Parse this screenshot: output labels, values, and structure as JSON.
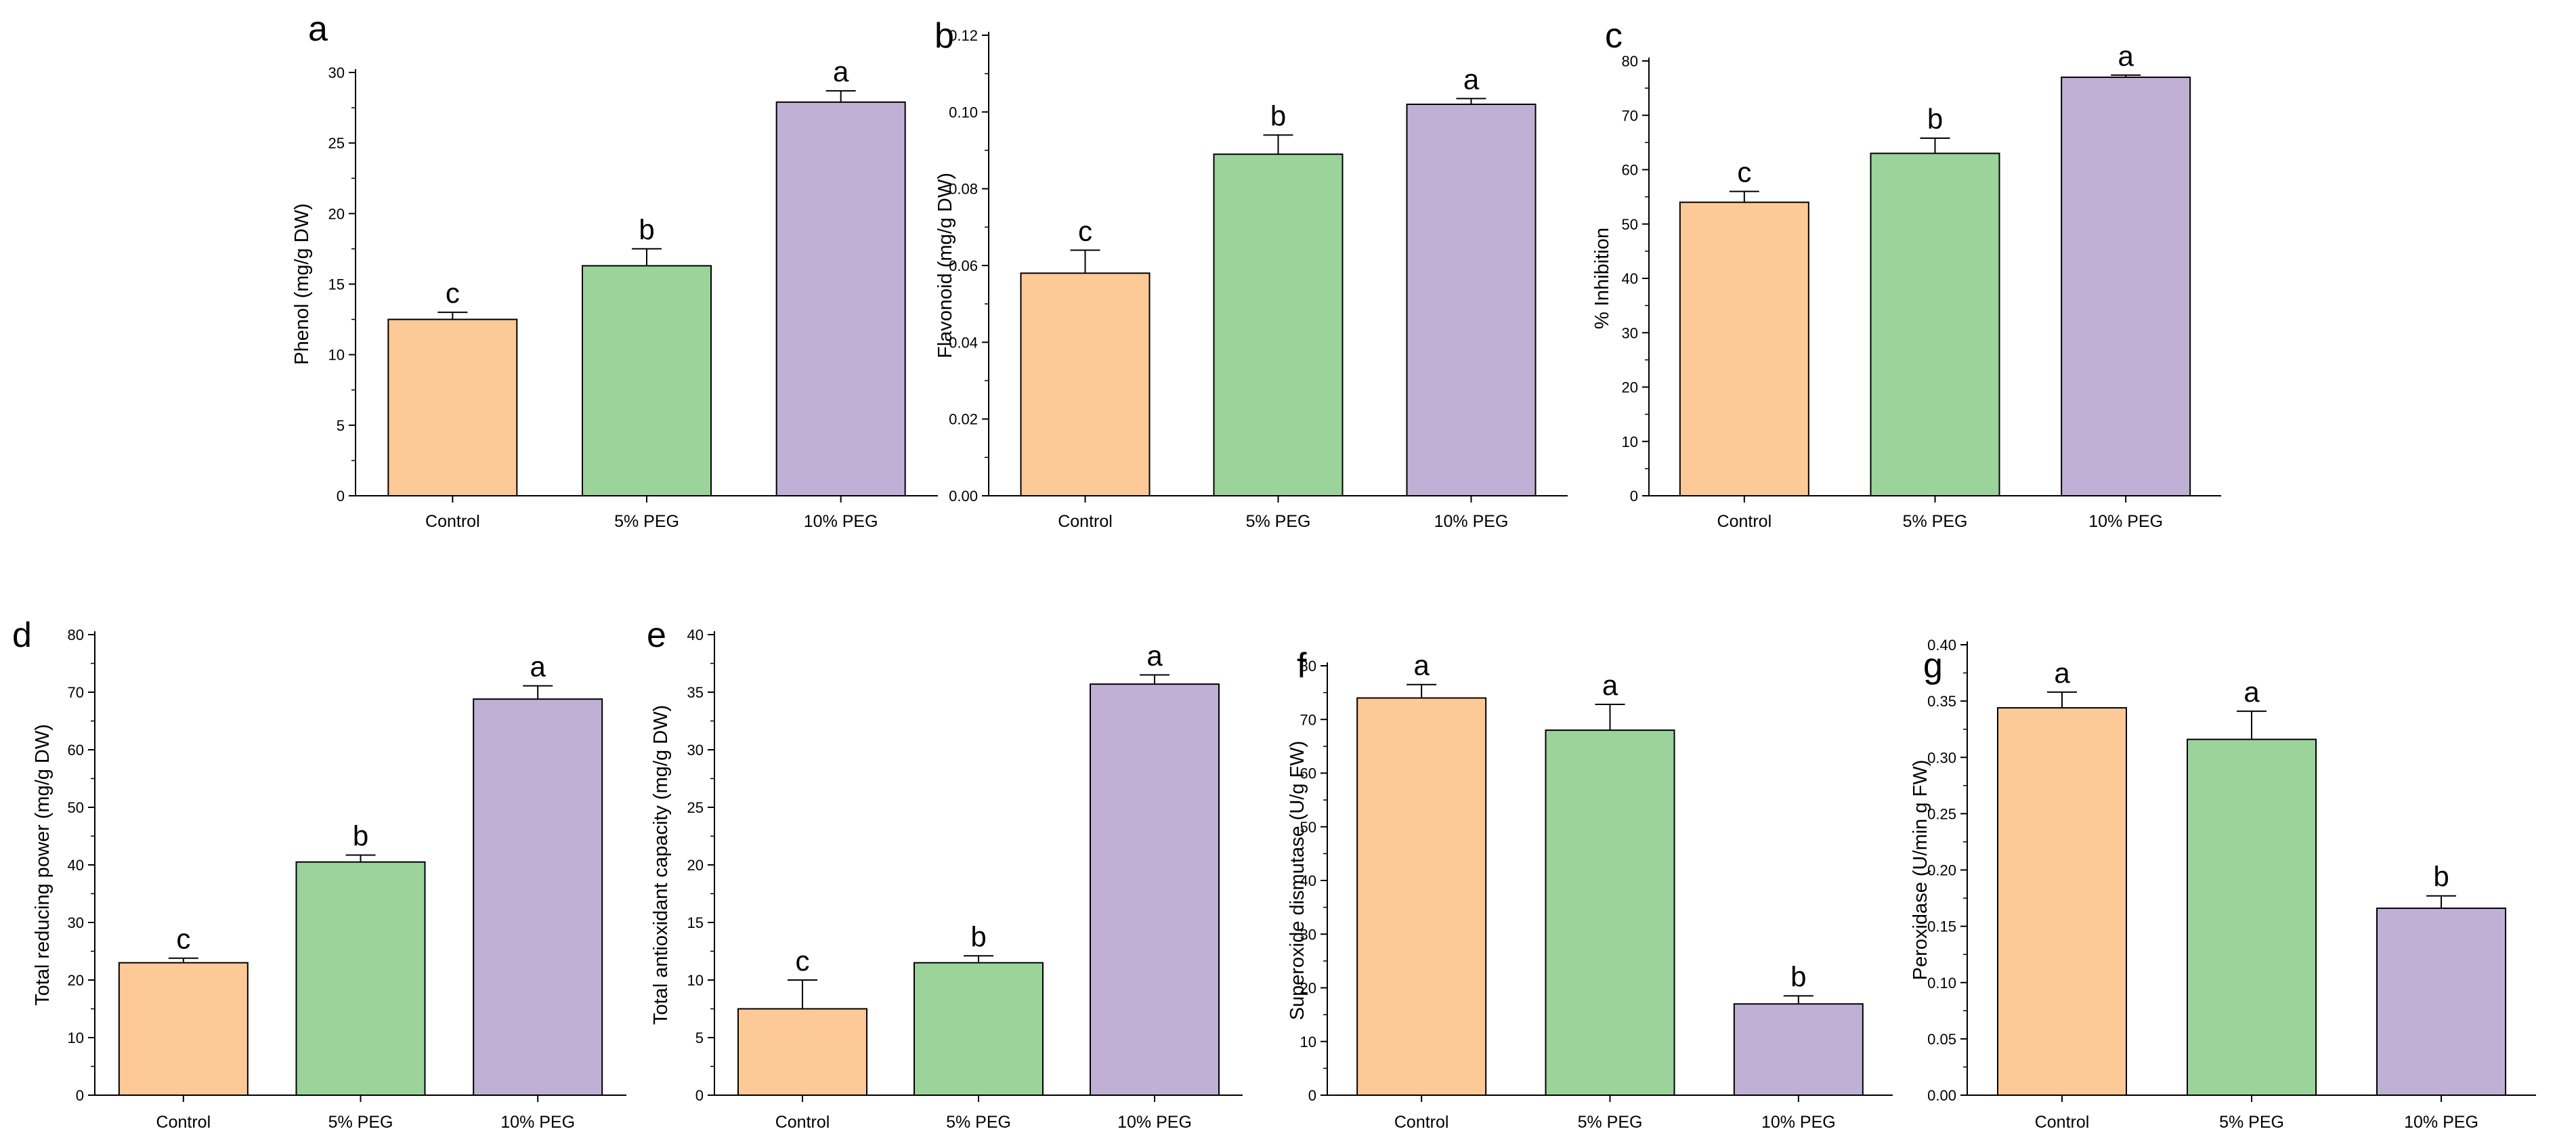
{
  "categories": [
    "Control",
    "5% PEG",
    "10% PEG"
  ],
  "colors": {
    "Control": "#fdc997",
    "5% PEG": "#9bd39b",
    "10% PEG": "#c1b0d6",
    "axis": "#000000"
  },
  "chart_data": [
    {
      "type": "bar",
      "panel": "a",
      "ylabel": "Phenol (mg/g DW)",
      "categories": [
        "Control",
        "5% PEG",
        "10% PEG"
      ],
      "values": [
        12.5,
        16.3,
        27.9
      ],
      "errors": [
        0.5,
        1.2,
        0.8
      ],
      "sig": [
        "c",
        "b",
        "a"
      ],
      "ylim": [
        0,
        30
      ],
      "yticks": [
        0,
        5,
        10,
        15,
        20,
        25,
        30
      ],
      "ytick_labels": [
        "0",
        "5",
        "10",
        "15",
        "20",
        "25",
        "30"
      ]
    },
    {
      "type": "bar",
      "panel": "b",
      "ylabel": "Flavonoid (mg/g DW)",
      "categories": [
        "Control",
        "5% PEG",
        "10% PEG"
      ],
      "values": [
        0.058,
        0.089,
        0.102
      ],
      "errors": [
        0.006,
        0.005,
        0.0015
      ],
      "sig": [
        "c",
        "b",
        "a"
      ],
      "ylim": [
        0,
        0.12
      ],
      "yticks": [
        0,
        0.02,
        0.04,
        0.06,
        0.08,
        0.1,
        0.12
      ],
      "ytick_labels": [
        "0.00",
        "0.02",
        "0.04",
        "0.06",
        "0.08",
        "0.10",
        "0.12"
      ]
    },
    {
      "type": "bar",
      "panel": "c",
      "ylabel": "% Inhibition",
      "categories": [
        "Control",
        "5% PEG",
        "10% PEG"
      ],
      "values": [
        54,
        63,
        77
      ],
      "errors": [
        2,
        2.8,
        0.4
      ],
      "sig": [
        "c",
        "b",
        "a"
      ],
      "ylim": [
        0,
        80
      ],
      "yticks": [
        0,
        10,
        20,
        30,
        40,
        50,
        60,
        70,
        80
      ],
      "ytick_labels": [
        "0",
        "10",
        "20",
        "30",
        "40",
        "50",
        "60",
        "70",
        "80"
      ]
    },
    {
      "type": "bar",
      "panel": "d",
      "ylabel": "Total reducing power (mg/g DW)",
      "categories": [
        "Control",
        "5% PEG",
        "10% PEG"
      ],
      "values": [
        23,
        40.5,
        68.8
      ],
      "errors": [
        0.8,
        1.2,
        2.3
      ],
      "sig": [
        "c",
        "b",
        "a"
      ],
      "ylim": [
        0,
        80
      ],
      "yticks": [
        0,
        10,
        20,
        30,
        40,
        50,
        60,
        70,
        80
      ],
      "ytick_labels": [
        "0",
        "10",
        "20",
        "30",
        "40",
        "50",
        "60",
        "70",
        "80"
      ]
    },
    {
      "type": "bar",
      "panel": "e",
      "ylabel": "Total antioxidant capacity (mg/g DW)",
      "categories": [
        "Control",
        "5% PEG",
        "10% PEG"
      ],
      "values": [
        7.5,
        11.5,
        35.7
      ],
      "errors": [
        2.5,
        0.6,
        0.8
      ],
      "sig": [
        "c",
        "b",
        "a"
      ],
      "ylim": [
        0,
        40
      ],
      "yticks": [
        0,
        5,
        10,
        15,
        20,
        25,
        30,
        35,
        40
      ],
      "ytick_labels": [
        "0",
        "5",
        "10",
        "15",
        "20",
        "25",
        "30",
        "35",
        "40"
      ]
    },
    {
      "type": "bar",
      "panel": "f",
      "ylabel": "Superoxide dismutase (U/g FW)",
      "categories": [
        "Control",
        "5% PEG",
        "10% PEG"
      ],
      "values": [
        74,
        68,
        17
      ],
      "errors": [
        2.5,
        4.8,
        1.5
      ],
      "sig": [
        "a",
        "a",
        "b"
      ],
      "ylim": [
        0,
        80
      ],
      "yticks": [
        0,
        10,
        20,
        30,
        40,
        50,
        60,
        70,
        80
      ],
      "ytick_labels": [
        "0",
        "10",
        "20",
        "30",
        "40",
        "50",
        "60",
        "70",
        "80"
      ]
    },
    {
      "type": "bar",
      "panel": "g",
      "ylabel": "Peroxidase (U/min g FW)",
      "categories": [
        "Control",
        "5% PEG",
        "10% PEG"
      ],
      "values": [
        0.344,
        0.316,
        0.166
      ],
      "errors": [
        0.014,
        0.025,
        0.011
      ],
      "sig": [
        "a",
        "a",
        "b"
      ],
      "ylim": [
        0,
        0.4
      ],
      "yticks": [
        0,
        0.05,
        0.1,
        0.15,
        0.2,
        0.25,
        0.3,
        0.35,
        0.4
      ],
      "ytick_labels": [
        "0.00",
        "0.05",
        "0.10",
        "0.15",
        "0.20",
        "0.25",
        "0.30",
        "0.35",
        "0.40"
      ]
    }
  ]
}
